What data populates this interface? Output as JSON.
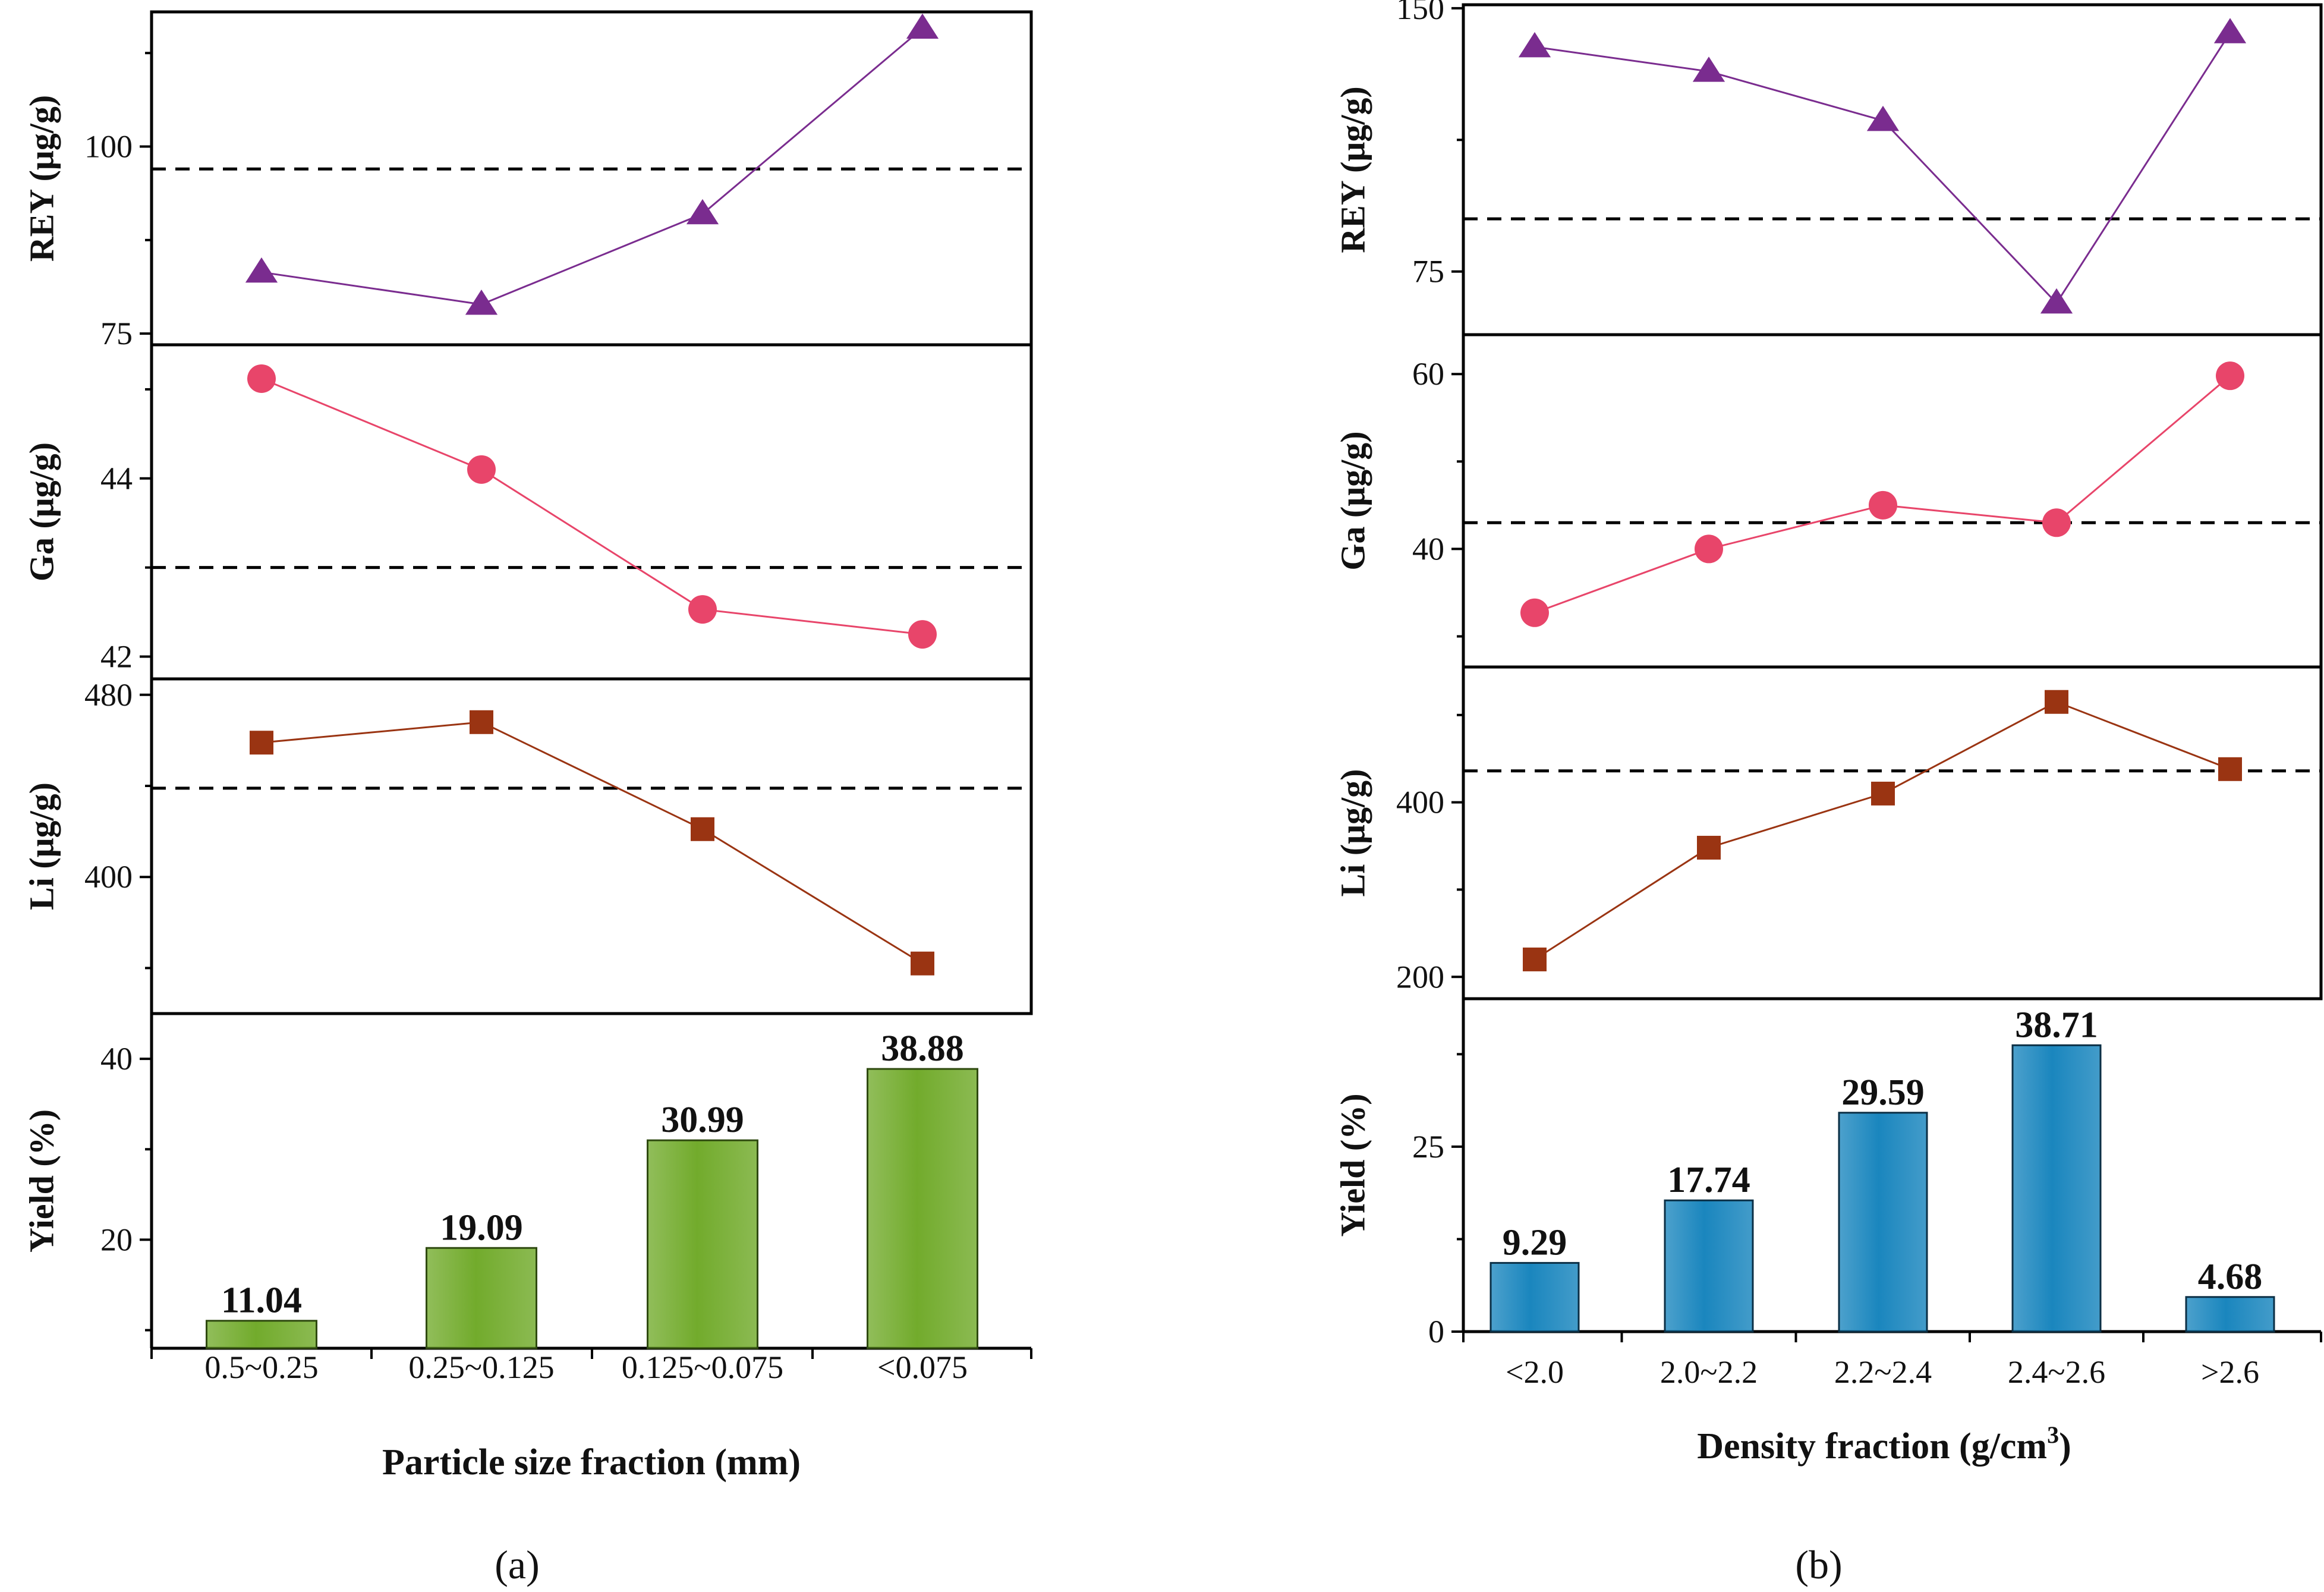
{
  "colors": {
    "rey": "#7a2c8f",
    "ga": "#e8456a",
    "li": "#9a3412",
    "bar_a": "#72ab2c",
    "bar_a_edge": "#2f4a10",
    "bar_b": "#1a86be",
    "bar_b_edge": "#0b2f45"
  },
  "chart_data": [
    {
      "id": "a",
      "caption": "(a)",
      "xlabel": "Particle size fraction (mm)",
      "xlabel_sup": "",
      "xlabel_after": "",
      "categories": [
        "0.5~0.25",
        "0.25~0.125",
        "0.125~0.075",
        "<0.075"
      ],
      "panels": [
        {
          "type": "line",
          "key": "rey",
          "ylabel": "REY (μg/g)",
          "marker": "triangle",
          "values": [
            83.2,
            78.9,
            91.0,
            115.8
          ],
          "reference": 97.0,
          "ylim": [
            73.5,
            118
          ],
          "ticks": [
            75,
            100
          ],
          "minor": [
            87.5,
            112.5
          ]
        },
        {
          "type": "line",
          "key": "ga",
          "ylabel": "Ga (μg/g)",
          "marker": "circle",
          "values": [
            45.12,
            44.1,
            42.53,
            42.25
          ],
          "reference": 43.0,
          "ylim": [
            41.75,
            45.5
          ],
          "ticks": [
            42,
            44
          ],
          "minor": [
            43,
            45
          ]
        },
        {
          "type": "line",
          "key": "li",
          "ylabel": "Li (μg/g)",
          "marker": "square",
          "values": [
            459,
            468,
            421,
            362
          ],
          "reference": 439,
          "ylim": [
            340,
            487
          ],
          "ticks": [
            400,
            480
          ],
          "minor": [
            360,
            440
          ]
        },
        {
          "type": "bar",
          "key": "bar_a",
          "ylabel": "Yield (%)",
          "values": [
            11.04,
            19.09,
            30.99,
            38.88
          ],
          "labels": [
            "11.04",
            "19.09",
            "30.99",
            "38.88"
          ],
          "ylim": [
            8,
            45
          ],
          "ticks": [
            20,
            40
          ],
          "minor": [
            10,
            30
          ]
        }
      ]
    },
    {
      "id": "b",
      "caption": "(b)",
      "xlabel": "Density fraction (g/cm",
      "xlabel_sup": "3",
      "xlabel_after": ")",
      "categories": [
        "<2.0",
        "2.0~2.2",
        "2.2~2.4",
        "2.4~2.6",
        ">2.6"
      ],
      "panels": [
        {
          "type": "line",
          "key": "rey",
          "ylabel": "REY (μg/g)",
          "marker": "triangle",
          "values": [
            139,
            132,
            118,
            66,
            143
          ],
          "reference": 90,
          "ylim": [
            57,
            151
          ],
          "ticks": [
            75,
            150
          ],
          "minor": [
            112.5
          ]
        },
        {
          "type": "line",
          "key": "ga",
          "ylabel": "Ga (μg/g)",
          "marker": "circle",
          "values": [
            32.7,
            40.0,
            45.0,
            43.0,
            59.8
          ],
          "reference": 43.0,
          "ylim": [
            26.5,
            64.5
          ],
          "ticks": [
            40,
            60
          ],
          "minor": [
            30,
            50
          ]
        },
        {
          "type": "line",
          "key": "li",
          "ylabel": "Li (μg/g)",
          "marker": "square",
          "values": [
            220,
            348,
            410,
            515,
            438
          ],
          "reference": 436,
          "ylim": [
            175,
            555
          ],
          "ticks": [
            200,
            400
          ],
          "minor": [
            300,
            500
          ]
        },
        {
          "type": "bar",
          "key": "bar_b",
          "ylabel": "Yield (%)",
          "values": [
            9.29,
            17.74,
            29.59,
            38.71,
            4.68
          ],
          "labels": [
            "9.29",
            "17.74",
            "29.59",
            "38.71",
            "4.68"
          ],
          "ylim": [
            0,
            45
          ],
          "ticks": [
            0,
            25
          ],
          "minor": [
            12.5,
            37.5
          ]
        }
      ]
    }
  ]
}
